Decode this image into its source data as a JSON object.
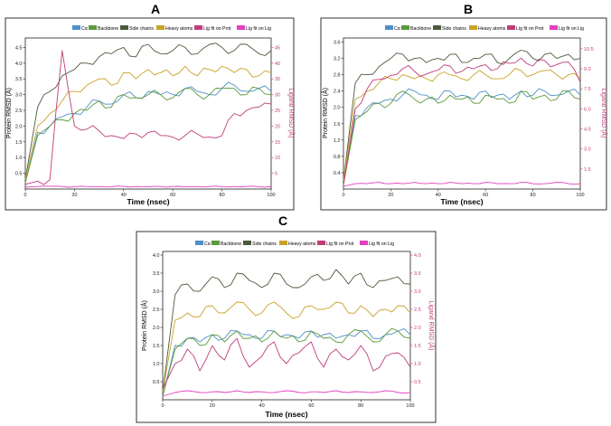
{
  "figure": {
    "panels": [
      {
        "label": "A",
        "legend": [
          "Cα",
          "Backbone",
          "Side chains",
          "Heavy atoms",
          "Lig fit on Prot",
          "Lig fit on Lig"
        ],
        "xlabel": "Time (nsec)",
        "ylabel_left": "Protein RMSD (Å)",
        "ylabel_right": "Ligand RMSD (Å)",
        "x_ticks": [
          "0",
          "20",
          "40",
          "60",
          "80",
          "100"
        ],
        "y_left_ticks": [
          "0.5",
          "1.0",
          "1.5",
          "2.0",
          "2.5",
          "3.0",
          "3.5",
          "4.0",
          "4.5"
        ],
        "y_right_ticks": [
          "5",
          "10",
          "15",
          "20",
          "25",
          "30",
          "35",
          "40",
          "45"
        ]
      },
      {
        "label": "B",
        "legend": [
          "Cα",
          "Backbone",
          "Side chains",
          "Heavy atoms",
          "Lig fit on Prot",
          "Lig fit on Lig"
        ],
        "xlabel": "Time (nsec)",
        "ylabel_left": "Protein RMSD (Å)",
        "ylabel_right": "Ligand RMSD (Å)",
        "x_ticks": [
          "0",
          "20",
          "40",
          "60",
          "80",
          "100"
        ],
        "y_left_ticks": [
          "0.4",
          "0.8",
          "1.2",
          "1.6",
          "2.0",
          "2.4",
          "2.8",
          "3.2",
          "3.6"
        ],
        "y_right_ticks": [
          "1.5",
          "3.0",
          "4.5",
          "6.0",
          "7.5",
          "9.0",
          "10.5"
        ]
      },
      {
        "label": "C",
        "legend": [
          "Cα",
          "Backbone",
          "Side chains",
          "Heavy atoms",
          "Lig fit on Prot",
          "Lig fit on Lig"
        ],
        "xlabel": "Time (nsec)",
        "ylabel_left": "Protein RMSD (Å)",
        "ylabel_right": "Ligand RMSD (Å)",
        "x_ticks": [
          "0",
          "20",
          "40",
          "60",
          "80",
          "100"
        ],
        "y_left_ticks": [
          "0.5",
          "1.0",
          "1.5",
          "2.0",
          "2.5",
          "3.0",
          "3.5",
          "4.0"
        ],
        "y_right_ticks": [
          "0.5",
          "1.0",
          "1.5",
          "2.0",
          "2.5",
          "3.0",
          "3.5",
          "4.0"
        ]
      }
    ]
  },
  "chart_data": [
    {
      "type": "line",
      "title": "A",
      "xlabel": "Time (nsec)",
      "ylabel": "Protein RMSD (Å)",
      "ylabel_right": "Ligand RMSD (Å)",
      "xlim": [
        0,
        100
      ],
      "ylim": [
        0,
        4.8
      ],
      "ylim_right": [
        0,
        48
      ],
      "x": [
        0,
        5,
        10,
        15,
        20,
        25,
        30,
        35,
        40,
        45,
        50,
        55,
        60,
        65,
        70,
        75,
        80,
        85,
        90,
        95,
        100
      ],
      "series": [
        {
          "name": "Cα",
          "axis": "left",
          "color": "#4e8fc9",
          "values": [
            0.2,
            1.8,
            2.0,
            2.3,
            2.4,
            2.6,
            2.8,
            2.7,
            3.0,
            2.9,
            3.1,
            3.0,
            3.0,
            3.2,
            3.1,
            3.0,
            3.2,
            3.3,
            3.1,
            3.2,
            3.1
          ]
        },
        {
          "name": "Backbone",
          "axis": "left",
          "color": "#5c9a3c",
          "values": [
            0.2,
            1.7,
            2.0,
            2.2,
            2.4,
            2.5,
            2.8,
            2.6,
            3.0,
            2.9,
            3.0,
            3.0,
            2.9,
            3.2,
            3.0,
            3.0,
            3.2,
            3.2,
            3.0,
            3.2,
            3.0
          ]
        },
        {
          "name": "Side chains",
          "axis": "left",
          "color": "#4a5a3a",
          "values": [
            0.3,
            2.6,
            3.1,
            3.6,
            3.8,
            4.0,
            4.2,
            4.3,
            4.5,
            4.2,
            4.6,
            4.3,
            4.4,
            4.5,
            4.3,
            4.6,
            4.5,
            4.4,
            4.6,
            4.3,
            4.4
          ]
        },
        {
          "name": "Heavy atoms",
          "axis": "left",
          "color": "#c9a227",
          "values": [
            0.3,
            2.0,
            2.4,
            2.8,
            3.1,
            3.3,
            3.5,
            3.3,
            3.7,
            3.5,
            3.8,
            3.7,
            3.6,
            3.9,
            3.6,
            3.8,
            3.9,
            3.7,
            3.8,
            3.6,
            3.7
          ]
        },
        {
          "name": "Lig fit on Prot",
          "axis": "right",
          "color": "#c03c7a",
          "values": [
            1.5,
            2.5,
            3.0,
            44.0,
            20.0,
            19.0,
            18.5,
            17.0,
            16.0,
            17.5,
            18.0,
            17.0,
            16.5,
            17.0,
            17.5,
            16.5,
            17.0,
            24.0,
            25.0,
            26.0,
            27.0
          ]
        },
        {
          "name": "Lig fit on Lig",
          "axis": "right",
          "color": "#e040c0",
          "values": [
            0.6,
            0.8,
            0.9,
            0.8,
            0.7,
            0.8,
            0.8,
            0.7,
            0.8,
            0.8,
            0.7,
            0.8,
            0.8,
            0.7,
            0.8,
            0.8,
            0.7,
            0.8,
            0.8,
            0.7,
            0.8
          ]
        }
      ]
    },
    {
      "type": "line",
      "title": "B",
      "xlabel": "Time (nsec)",
      "ylabel": "Protein RMSD (Å)",
      "ylabel_right": "Ligand RMSD (Å)",
      "xlim": [
        0,
        100
      ],
      "ylim": [
        0,
        3.7
      ],
      "ylim_right": [
        0,
        11.3
      ],
      "x": [
        0,
        5,
        10,
        15,
        20,
        25,
        30,
        35,
        40,
        45,
        50,
        55,
        60,
        65,
        70,
        75,
        80,
        85,
        90,
        95,
        100
      ],
      "series": [
        {
          "name": "Cα",
          "axis": "left",
          "color": "#4e8fc9",
          "values": [
            0.1,
            1.8,
            2.0,
            2.1,
            2.2,
            2.3,
            2.4,
            2.3,
            2.2,
            2.4,
            2.3,
            2.2,
            2.4,
            2.3,
            2.2,
            2.4,
            2.3,
            2.4,
            2.3,
            2.4,
            2.3
          ]
        },
        {
          "name": "Backbone",
          "axis": "left",
          "color": "#5c9a3c",
          "values": [
            0.1,
            1.7,
            1.9,
            2.1,
            2.1,
            2.4,
            2.2,
            2.2,
            2.1,
            2.3,
            2.2,
            2.1,
            2.3,
            2.2,
            2.1,
            2.4,
            2.2,
            2.3,
            2.2,
            2.4,
            2.2
          ]
        },
        {
          "name": "Side chains",
          "axis": "left",
          "color": "#4a5a3a",
          "values": [
            0.2,
            2.6,
            2.8,
            3.0,
            3.2,
            3.3,
            3.2,
            3.1,
            3.2,
            3.3,
            3.1,
            3.2,
            3.3,
            3.1,
            3.2,
            3.4,
            3.2,
            3.3,
            3.2,
            3.3,
            3.2
          ]
        },
        {
          "name": "Heavy atoms",
          "axis": "left",
          "color": "#c9a227",
          "values": [
            0.2,
            2.2,
            2.4,
            2.6,
            2.7,
            2.8,
            2.7,
            2.7,
            2.8,
            2.8,
            2.7,
            2.8,
            2.8,
            2.7,
            2.8,
            2.9,
            2.8,
            2.9,
            2.8,
            2.8,
            2.7
          ]
        },
        {
          "name": "Lig fit on Prot",
          "axis": "right",
          "color": "#c03c7a",
          "values": [
            0.3,
            6.0,
            7.5,
            8.2,
            8.5,
            9.0,
            8.8,
            8.6,
            8.9,
            9.2,
            8.8,
            9.0,
            9.3,
            9.0,
            9.4,
            9.8,
            9.2,
            9.6,
            9.3,
            9.5,
            8.0
          ]
        },
        {
          "name": "Lig fit on Lig",
          "axis": "right",
          "color": "#e040c0",
          "values": [
            0.2,
            0.4,
            0.4,
            0.5,
            0.4,
            0.4,
            0.5,
            0.4,
            0.4,
            0.5,
            0.4,
            0.4,
            0.5,
            0.4,
            0.4,
            0.5,
            0.4,
            0.4,
            0.5,
            0.4,
            0.4
          ]
        }
      ]
    },
    {
      "type": "line",
      "title": "C",
      "xlabel": "Time (nsec)",
      "ylabel": "Protein RMSD (Å)",
      "ylabel_right": "Ligand RMSD (Å)",
      "xlim": [
        0,
        100
      ],
      "ylim": [
        0,
        4.1
      ],
      "ylim_right": [
        0,
        4.1
      ],
      "x": [
        0,
        5,
        10,
        15,
        20,
        25,
        30,
        35,
        40,
        45,
        50,
        55,
        60,
        65,
        70,
        75,
        80,
        85,
        90,
        95,
        100
      ],
      "series": [
        {
          "name": "Cα",
          "axis": "left",
          "color": "#4e8fc9",
          "values": [
            0.1,
            1.5,
            1.7,
            1.6,
            1.8,
            1.7,
            1.9,
            1.8,
            1.7,
            1.9,
            1.8,
            1.7,
            1.9,
            1.8,
            1.7,
            1.8,
            1.9,
            1.7,
            1.8,
            1.9,
            1.8
          ]
        },
        {
          "name": "Backbone",
          "axis": "left",
          "color": "#5c9a3c",
          "values": [
            0.1,
            1.4,
            1.7,
            1.5,
            1.8,
            1.6,
            1.9,
            1.7,
            1.6,
            1.9,
            1.7,
            1.6,
            1.9,
            1.7,
            1.6,
            1.8,
            1.9,
            1.6,
            1.8,
            1.9,
            1.7
          ]
        },
        {
          "name": "Side chains",
          "axis": "left",
          "color": "#4a5a3a",
          "values": [
            0.2,
            2.9,
            3.2,
            3.0,
            3.4,
            3.1,
            3.5,
            3.3,
            3.1,
            3.5,
            3.2,
            3.1,
            3.4,
            3.3,
            3.6,
            3.2,
            3.5,
            3.1,
            3.3,
            3.4,
            3.2
          ]
        },
        {
          "name": "Heavy atoms",
          "axis": "left",
          "color": "#c9a227",
          "values": [
            0.2,
            2.2,
            2.4,
            2.3,
            2.6,
            2.4,
            2.7,
            2.5,
            2.4,
            2.7,
            2.4,
            2.3,
            2.6,
            2.5,
            2.7,
            2.4,
            2.6,
            2.3,
            2.5,
            2.6,
            2.4
          ]
        },
        {
          "name": "Lig fit on Prot",
          "axis": "right",
          "color": "#c03c7a",
          "values": [
            0.3,
            1.0,
            1.4,
            0.8,
            1.5,
            1.1,
            1.7,
            0.9,
            1.2,
            1.6,
            1.0,
            1.3,
            1.6,
            0.9,
            1.4,
            1.1,
            1.5,
            0.8,
            1.2,
            1.3,
            0.9
          ]
        },
        {
          "name": "Lig fit on Lig",
          "axis": "right",
          "color": "#e040c0",
          "values": [
            0.1,
            0.2,
            0.25,
            0.2,
            0.22,
            0.2,
            0.25,
            0.2,
            0.22,
            0.2,
            0.25,
            0.2,
            0.22,
            0.2,
            0.25,
            0.2,
            0.22,
            0.2,
            0.25,
            0.2,
            0.2
          ]
        }
      ]
    }
  ]
}
